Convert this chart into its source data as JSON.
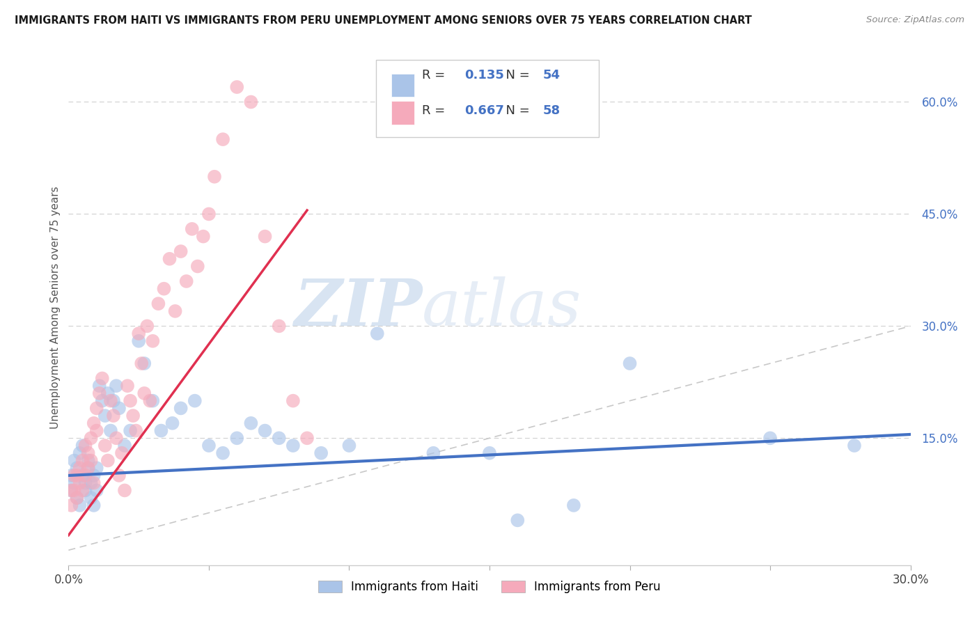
{
  "title": "IMMIGRANTS FROM HAITI VS IMMIGRANTS FROM PERU UNEMPLOYMENT AMONG SENIORS OVER 75 YEARS CORRELATION CHART",
  "source": "Source: ZipAtlas.com",
  "ylabel": "Unemployment Among Seniors over 75 years",
  "legend_haiti": "Immigrants from Haiti",
  "legend_peru": "Immigrants from Peru",
  "R_haiti": "0.135",
  "N_haiti": "54",
  "R_peru": "0.667",
  "N_peru": "58",
  "xlim": [
    0.0,
    0.3
  ],
  "ylim": [
    -0.02,
    0.67
  ],
  "yticks_right": [
    0.15,
    0.3,
    0.45,
    0.6
  ],
  "color_haiti": "#aac4e8",
  "color_peru": "#f5aabb",
  "color_line_haiti": "#4472c4",
  "color_line_peru": "#e03050",
  "color_legend_text": "#4472c4",
  "watermark_zip": "ZIP",
  "watermark_atlas": "atlas",
  "background_color": "#ffffff",
  "haiti_x": [
    0.001,
    0.001,
    0.002,
    0.002,
    0.003,
    0.003,
    0.004,
    0.004,
    0.005,
    0.005,
    0.006,
    0.006,
    0.007,
    0.007,
    0.008,
    0.008,
    0.009,
    0.009,
    0.01,
    0.01,
    0.011,
    0.012,
    0.013,
    0.014,
    0.015,
    0.016,
    0.017,
    0.018,
    0.02,
    0.022,
    0.025,
    0.027,
    0.03,
    0.033,
    0.037,
    0.04,
    0.045,
    0.05,
    0.055,
    0.06,
    0.065,
    0.07,
    0.075,
    0.08,
    0.09,
    0.1,
    0.11,
    0.13,
    0.15,
    0.16,
    0.18,
    0.2,
    0.25,
    0.28
  ],
  "haiti_y": [
    0.1,
    0.08,
    0.12,
    0.09,
    0.11,
    0.07,
    0.13,
    0.06,
    0.1,
    0.14,
    0.09,
    0.08,
    0.11,
    0.12,
    0.07,
    0.09,
    0.1,
    0.06,
    0.08,
    0.11,
    0.22,
    0.2,
    0.18,
    0.21,
    0.16,
    0.2,
    0.22,
    0.19,
    0.14,
    0.16,
    0.28,
    0.25,
    0.2,
    0.16,
    0.17,
    0.19,
    0.2,
    0.14,
    0.13,
    0.15,
    0.17,
    0.16,
    0.15,
    0.14,
    0.13,
    0.14,
    0.29,
    0.13,
    0.13,
    0.04,
    0.06,
    0.25,
    0.15,
    0.14
  ],
  "peru_x": [
    0.001,
    0.001,
    0.002,
    0.002,
    0.003,
    0.003,
    0.004,
    0.004,
    0.005,
    0.005,
    0.006,
    0.006,
    0.007,
    0.007,
    0.008,
    0.008,
    0.009,
    0.009,
    0.01,
    0.01,
    0.011,
    0.012,
    0.013,
    0.014,
    0.015,
    0.016,
    0.017,
    0.018,
    0.019,
    0.02,
    0.021,
    0.022,
    0.023,
    0.024,
    0.025,
    0.026,
    0.027,
    0.028,
    0.029,
    0.03,
    0.032,
    0.034,
    0.036,
    0.038,
    0.04,
    0.042,
    0.044,
    0.046,
    0.048,
    0.05,
    0.052,
    0.055,
    0.06,
    0.065,
    0.07,
    0.075,
    0.08,
    0.085
  ],
  "peru_y": [
    0.06,
    0.08,
    0.08,
    0.1,
    0.1,
    0.07,
    0.09,
    0.11,
    0.12,
    0.08,
    0.14,
    0.1,
    0.13,
    0.11,
    0.15,
    0.12,
    0.17,
    0.09,
    0.19,
    0.16,
    0.21,
    0.23,
    0.14,
    0.12,
    0.2,
    0.18,
    0.15,
    0.1,
    0.13,
    0.08,
    0.22,
    0.2,
    0.18,
    0.16,
    0.29,
    0.25,
    0.21,
    0.3,
    0.2,
    0.28,
    0.33,
    0.35,
    0.39,
    0.32,
    0.4,
    0.36,
    0.43,
    0.38,
    0.42,
    0.45,
    0.5,
    0.55,
    0.62,
    0.6,
    0.42,
    0.3,
    0.2,
    0.15
  ]
}
